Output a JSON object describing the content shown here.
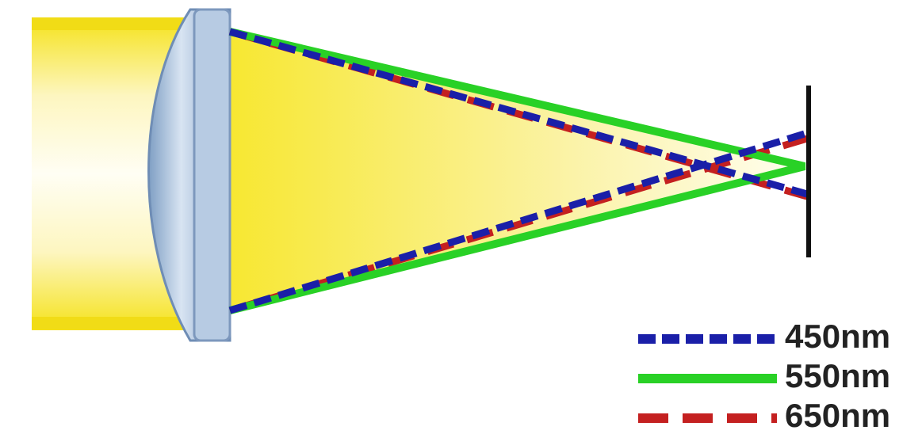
{
  "legend": {
    "items": [
      {
        "label": "450nm"
      },
      {
        "label": "550nm"
      },
      {
        "label": "650nm"
      }
    ]
  }
}
